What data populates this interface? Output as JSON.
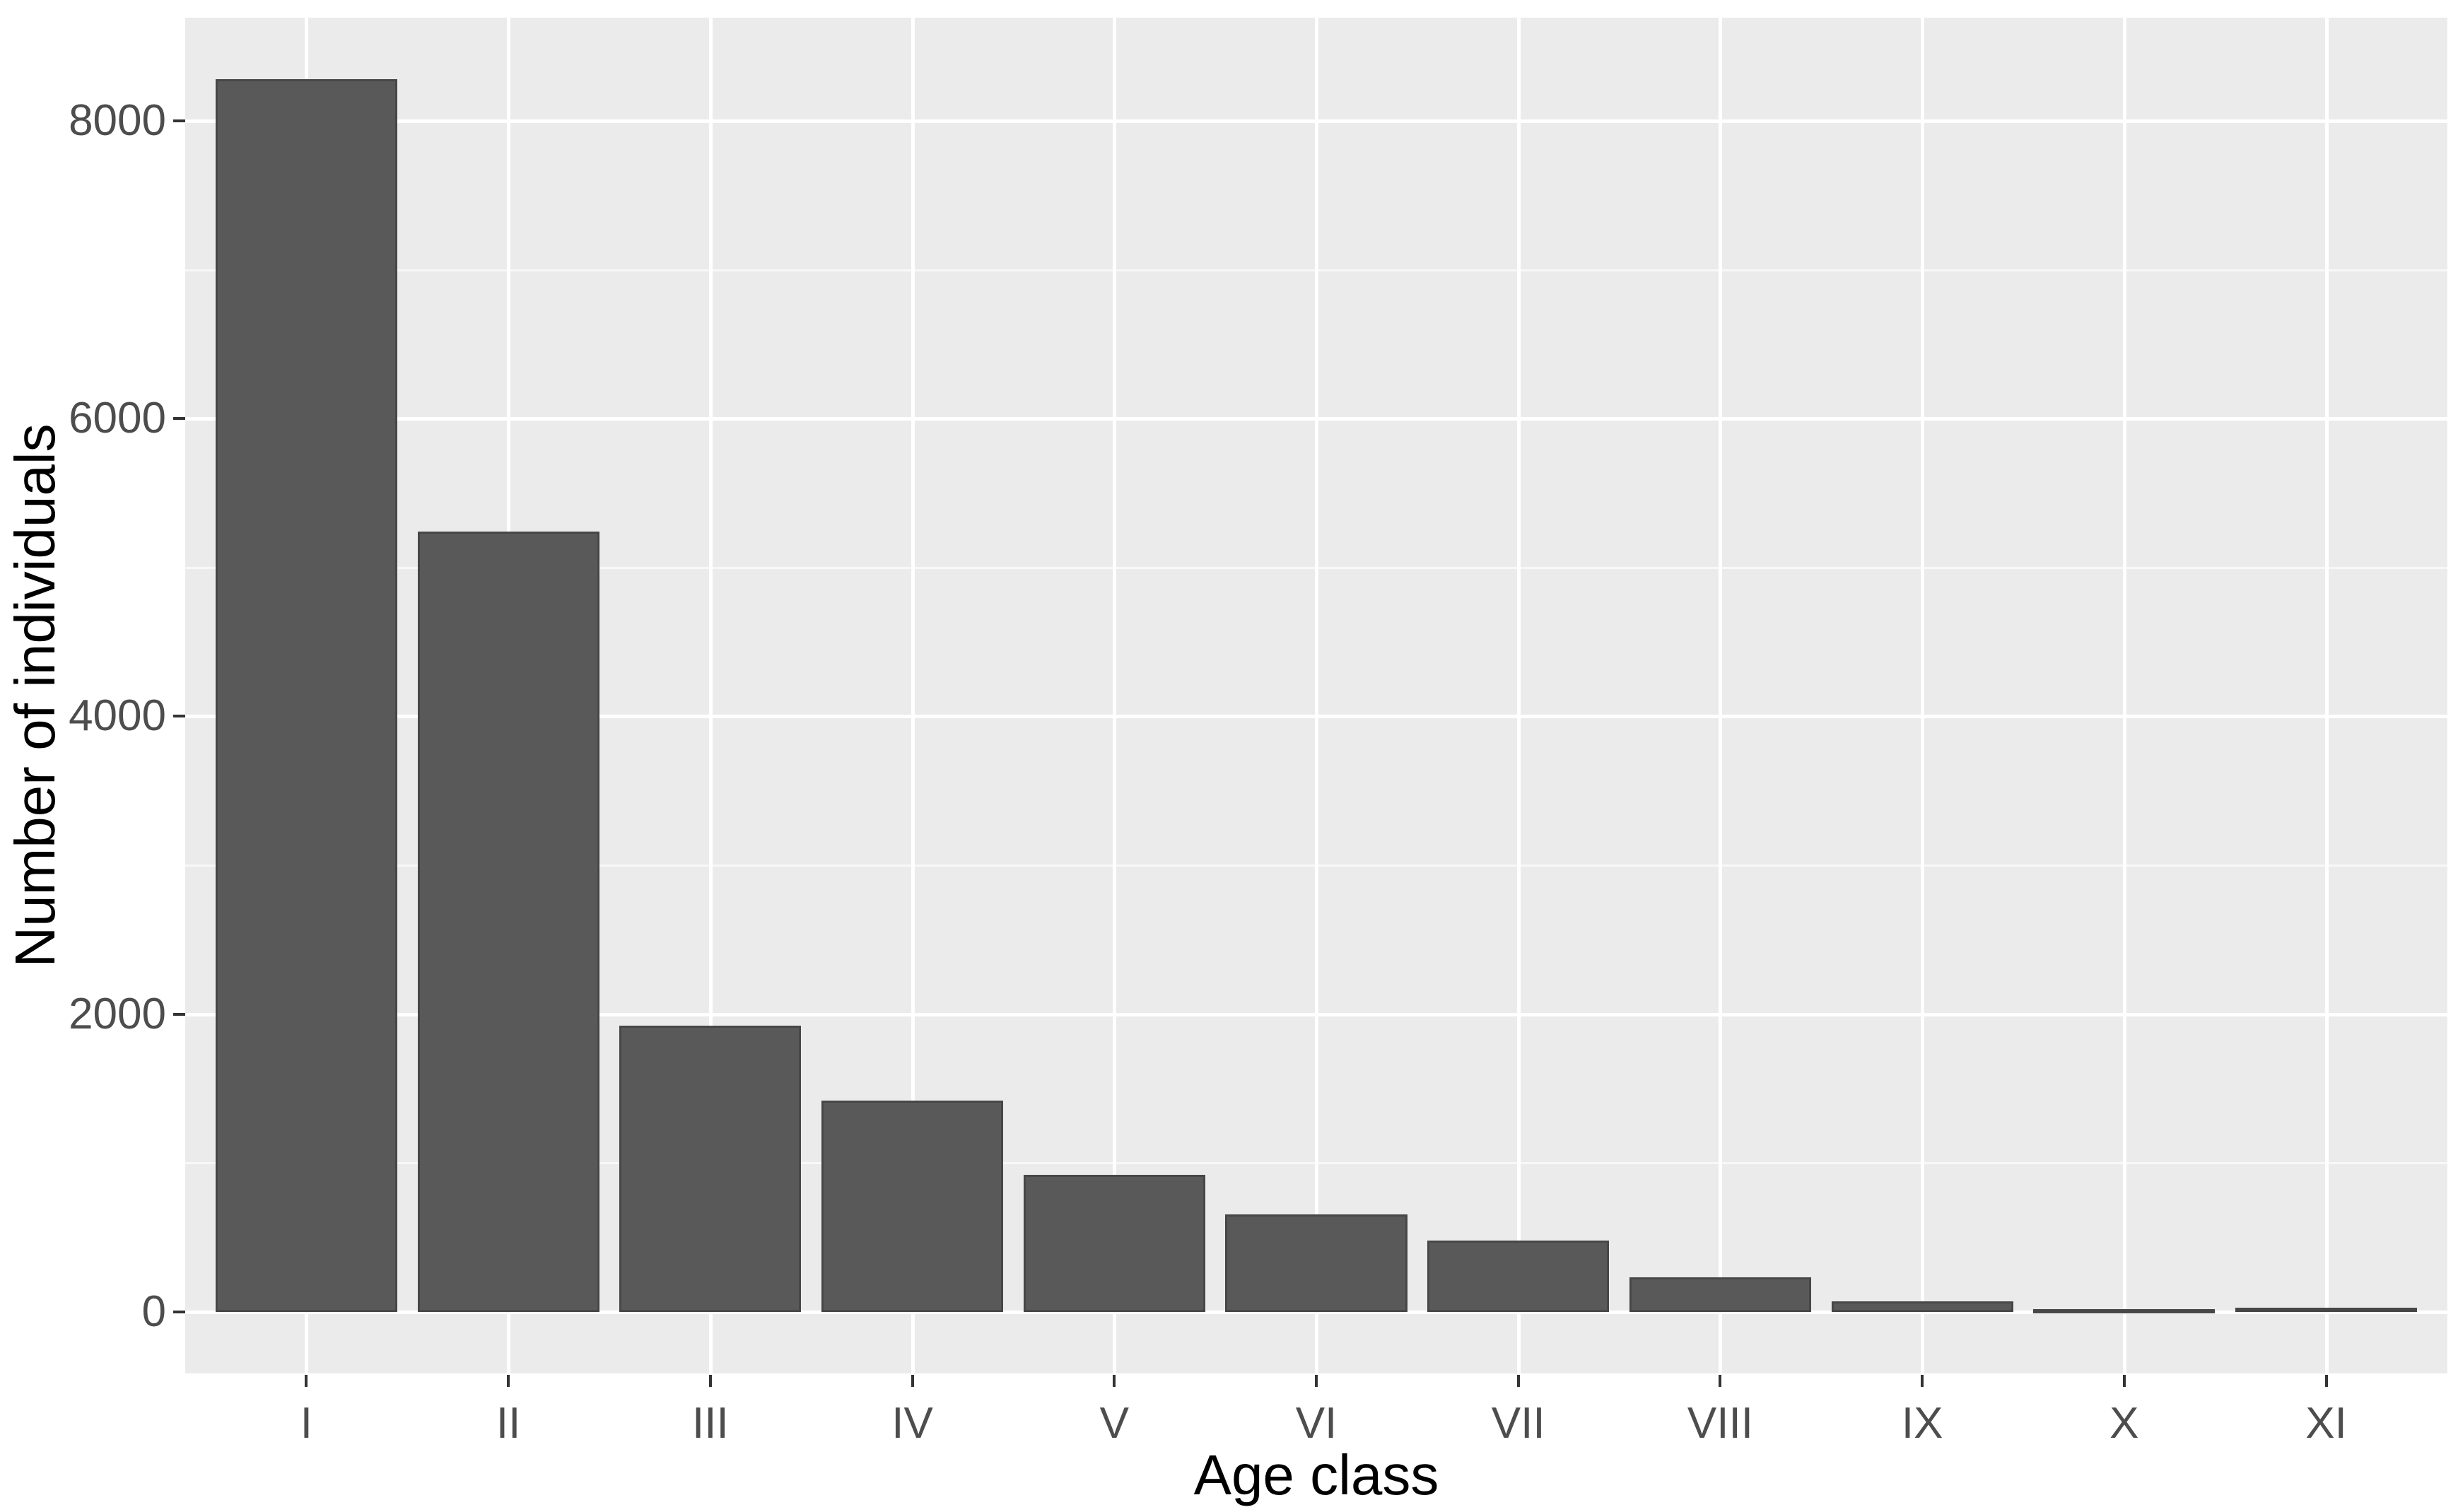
{
  "chart_data": {
    "type": "bar",
    "title": "",
    "xlabel": "Age class",
    "ylabel": "Number of individuals",
    "categories": [
      "I",
      "II",
      "III",
      "IV",
      "V",
      "VI",
      "VII",
      "VIII",
      "IX",
      "X",
      "XI"
    ],
    "values": [
      8280,
      5240,
      1920,
      1420,
      920,
      655,
      480,
      230,
      70,
      20,
      30
    ],
    "y_ticks": [
      0,
      2000,
      4000,
      6000,
      8000
    ],
    "y_tick_labels": [
      "0",
      "2000",
      "4000",
      "6000",
      "8000"
    ],
    "y_minor_ticks": [
      1000,
      3000,
      5000,
      7000
    ],
    "ylim": [
      -414,
      8694
    ],
    "bar_width_fraction": 0.9,
    "grid": true,
    "legend": false,
    "style": "ggplot2"
  },
  "colors": {
    "figure_background": "#ffffff",
    "panel_background": "#ebebeb",
    "grid_major": "#ffffff",
    "grid_minor": "rgba(255,255,255,0.65)",
    "bar_fill": "#595959",
    "bar_border": "#474747",
    "tick_mark": "#333333",
    "tick_label": "#4d4d4d",
    "axis_title": "#000000"
  }
}
